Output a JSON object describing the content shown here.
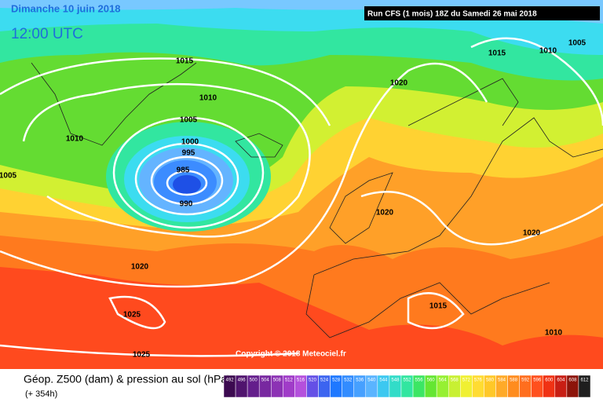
{
  "header": {
    "date": "Dimanche 10 juin 2018",
    "time": "12:00 UTC",
    "run": "Run CFS (1 mois) 18Z du Samedi 26 mai 2018"
  },
  "isobar_labels": [
    "1015",
    "1010",
    "1005",
    "1000",
    "995",
    "985",
    "990",
    "1010",
    "1005",
    "1020",
    "1025",
    "1025",
    "1020",
    "1015",
    "1010",
    "1005",
    "1020",
    "1020",
    "1015",
    "1010"
  ],
  "copyright": "Copyright © 2018 Meteociel.fr",
  "footer": {
    "title": "Géop. Z500 (dam) & pression au sol (hPa)",
    "lead": "(+ 354h)"
  },
  "legend": {
    "values": [
      492,
      496,
      500,
      504,
      508,
      512,
      516,
      520,
      524,
      528,
      532,
      536,
      540,
      544,
      548,
      552,
      556,
      560,
      564,
      568,
      572,
      576,
      580,
      584,
      588,
      592,
      596,
      600,
      604,
      608,
      612
    ]
  }
}
